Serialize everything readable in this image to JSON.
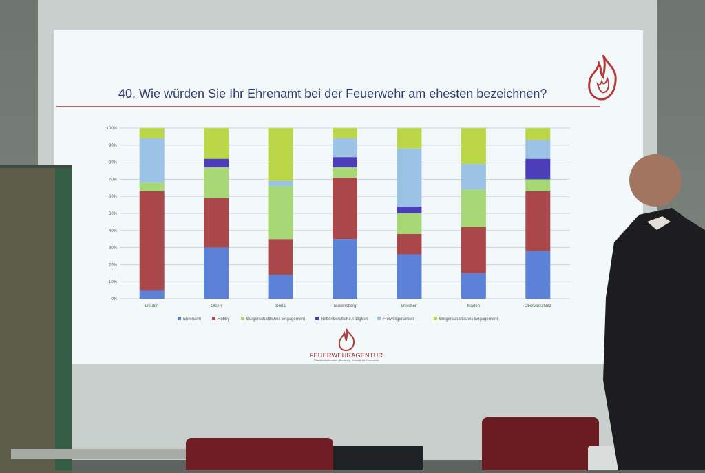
{
  "slide": {
    "title": "40. Wie würden Sie Ihr Ehrenamt bei der Feuerwehr am ehesten bezeichnen?"
  },
  "logo": {
    "text": "FEUERWEHRAGENTUR",
    "subtext": "Öffentlichkeitsarbeit, Beratung, Zukunft für Feuerwehr"
  },
  "colors": {
    "ehrenamt": "#5b82d6",
    "hobby": "#a9484a",
    "buergerschaftlich": "#a6d876",
    "nebenberuflich": "#4b3fb8",
    "freiwilligenarbeit": "#9cc3e6",
    "buergerschaftlich2": "#bcd64a"
  },
  "chart_data": {
    "type": "bar",
    "stacked": true,
    "categories": [
      "Deuten",
      "Olsen",
      "Dorla",
      "Gudensberg",
      "Gleichen",
      "Maden",
      "Obervorschütz"
    ],
    "yticks": [
      "0%",
      "10%",
      "20%",
      "30%",
      "40%",
      "50%",
      "60%",
      "70%",
      "80%",
      "90%",
      "100%"
    ],
    "ylim": [
      0,
      100
    ],
    "series": [
      {
        "name": "Ehrenamt",
        "values": [
          5,
          30,
          14,
          35,
          26,
          15,
          28
        ]
      },
      {
        "name": "Hobby",
        "values": [
          58,
          29,
          21,
          36,
          12,
          27,
          35
        ]
      },
      {
        "name": "Bürgerschaftliches Engagement",
        "values": [
          5,
          18,
          31,
          6,
          12,
          22,
          7
        ]
      },
      {
        "name": "Nebenberufliche Tätigkeit",
        "values": [
          0,
          5,
          0,
          6,
          4,
          0,
          12
        ]
      },
      {
        "name": "Freiwilligenarbeit",
        "values": [
          26,
          0,
          3,
          11,
          34,
          15,
          11
        ]
      },
      {
        "name": "Bürgerschaftliches Engagement",
        "values": [
          6,
          18,
          31,
          6,
          12,
          21,
          7
        ]
      }
    ],
    "legend_position": "bottom",
    "grid": true
  }
}
